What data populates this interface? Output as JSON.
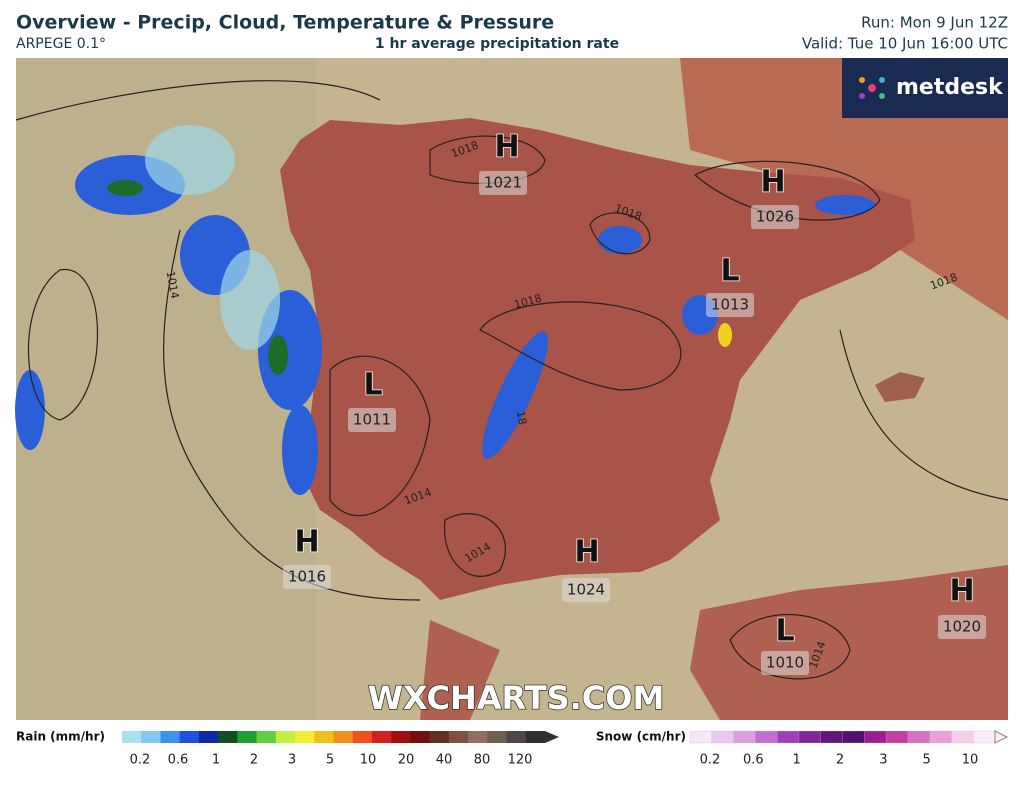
{
  "header": {
    "title": "Overview - Precip, Cloud, Temperature & Pressure",
    "model": "ARPEGE 0.1°",
    "subtitle": "1 hr average precipitation rate",
    "run": "Run: Mon 9 Jun 12Z",
    "valid": "Valid: Tue 10 Jun 16:00 UTC"
  },
  "logo": "metdesk",
  "watermark": "WXCHARTS.COM",
  "pressure_centers": [
    {
      "kind": "H",
      "value": "1021"
    },
    {
      "kind": "H",
      "value": "1026"
    },
    {
      "kind": "L",
      "value": "1013"
    },
    {
      "kind": "L",
      "value": "1011"
    },
    {
      "kind": "H",
      "value": "1016"
    },
    {
      "kind": "H",
      "value": "1024"
    },
    {
      "kind": "L",
      "value": "1010"
    },
    {
      "kind": "H",
      "value": "1020"
    }
  ],
  "isobar_labels": [
    "1018",
    "1018",
    "1018",
    "1018",
    "18",
    "1014",
    "1014",
    "1014",
    "1014"
  ],
  "legend": {
    "rain": {
      "label": "Rain (mm/hr)",
      "ticks": [
        "0.2",
        "0.6",
        "1",
        "2",
        "3",
        "5",
        "10",
        "20",
        "40",
        "80",
        "120"
      ]
    },
    "snow": {
      "label": "Snow (cm/hr)",
      "ticks": [
        "0.2",
        "0.6",
        "1",
        "2",
        "3",
        "5",
        "10"
      ]
    }
  }
}
